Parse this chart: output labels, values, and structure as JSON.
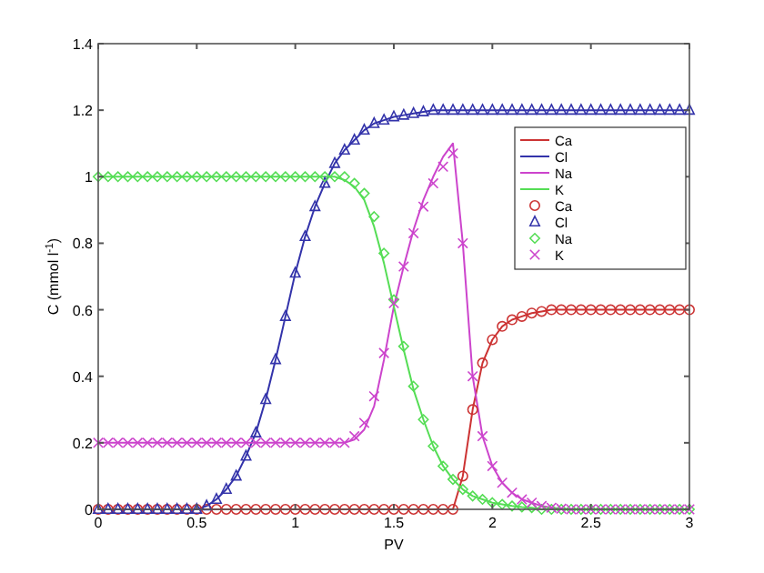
{
  "chart_data": {
    "type": "line",
    "xlabel": "PV",
    "ylabel": "C (mmol l$^{-1}$)",
    "x": [
      0,
      0.05,
      0.1,
      0.15,
      0.2,
      0.25,
      0.3,
      0.35,
      0.4,
      0.45,
      0.5,
      0.55,
      0.6,
      0.65,
      0.7,
      0.75,
      0.8,
      0.85,
      0.9,
      0.95,
      1,
      1.05,
      1.1,
      1.15,
      1.2,
      1.25,
      1.3,
      1.35,
      1.4,
      1.45,
      1.5,
      1.55,
      1.6,
      1.65,
      1.7,
      1.75,
      1.8,
      1.85,
      1.9,
      1.95,
      2,
      2.05,
      2.1,
      2.15,
      2.2,
      2.25,
      2.3,
      2.35,
      2.4,
      2.45,
      2.5,
      2.55,
      2.6,
      2.65,
      2.7,
      2.75,
      2.8,
      2.85,
      2.9,
      2.95,
      3
    ],
    "series": [
      {
        "name": "Ca",
        "marker": "none",
        "color": "#cc3333",
        "values": [
          0,
          0,
          0,
          0,
          0,
          0,
          0,
          0,
          0,
          0,
          0,
          0,
          0,
          0,
          0,
          0,
          0,
          0,
          0,
          0,
          0,
          0,
          0,
          0,
          0,
          0,
          0,
          0,
          0,
          0,
          0,
          0,
          0,
          0,
          0,
          0,
          0,
          0.1,
          0.3,
          0.44,
          0.51,
          0.55,
          0.57,
          0.58,
          0.59,
          0.595,
          0.6,
          0.6,
          0.6,
          0.6,
          0.6,
          0.6,
          0.6,
          0.6,
          0.6,
          0.6,
          0.6,
          0.6,
          0.6,
          0.6,
          0.6
        ]
      },
      {
        "name": "Cl",
        "marker": "none",
        "color": "#3333aa",
        "values": [
          0,
          0,
          0,
          0,
          0,
          0,
          0,
          0,
          0,
          0,
          0,
          0.01,
          0.03,
          0.06,
          0.1,
          0.16,
          0.23,
          0.33,
          0.45,
          0.58,
          0.71,
          0.82,
          0.91,
          0.98,
          1.04,
          1.08,
          1.11,
          1.14,
          1.16,
          1.17,
          1.18,
          1.185,
          1.19,
          1.195,
          1.2,
          1.2,
          1.2,
          1.2,
          1.2,
          1.2,
          1.2,
          1.2,
          1.2,
          1.2,
          1.2,
          1.2,
          1.2,
          1.2,
          1.2,
          1.2,
          1.2,
          1.2,
          1.2,
          1.2,
          1.2,
          1.2,
          1.2,
          1.2,
          1.2,
          1.2,
          1.2
        ]
      },
      {
        "name": "Na",
        "marker": "none",
        "color": "#cc44cc",
        "values": [
          0.2,
          0.2,
          0.2,
          0.2,
          0.2,
          0.2,
          0.2,
          0.2,
          0.2,
          0.2,
          0.2,
          0.2,
          0.2,
          0.2,
          0.2,
          0.2,
          0.2,
          0.2,
          0.2,
          0.2,
          0.2,
          0.2,
          0.2,
          0.2,
          0.2,
          0.2,
          0.21,
          0.24,
          0.31,
          0.45,
          0.61,
          0.73,
          0.84,
          0.93,
          1.0,
          1.06,
          1.1,
          0.8,
          0.4,
          0.22,
          0.13,
          0.08,
          0.05,
          0.03,
          0.02,
          0.01,
          0.005,
          0.002,
          0,
          0,
          0,
          0,
          0,
          0,
          0,
          0,
          0,
          0,
          0,
          0,
          0
        ]
      },
      {
        "name": "K",
        "marker": "none",
        "color": "#55dd55",
        "values": [
          1,
          1,
          1,
          1,
          1,
          1,
          1,
          1,
          1,
          1,
          1,
          1,
          1,
          1,
          1,
          1,
          1,
          1,
          1,
          1,
          1,
          1,
          1,
          1,
          1,
          0.99,
          0.97,
          0.93,
          0.85,
          0.74,
          0.61,
          0.48,
          0.36,
          0.27,
          0.19,
          0.13,
          0.09,
          0.06,
          0.04,
          0.03,
          0.02,
          0.015,
          0.01,
          0.007,
          0.005,
          0,
          0,
          0,
          0,
          0,
          0,
          0,
          0,
          0,
          0,
          0,
          0,
          0,
          0,
          0,
          0
        ]
      },
      {
        "name": "Ca",
        "type": "scatter",
        "marker": "circle",
        "color": "#cc3333",
        "values": [
          0,
          0,
          0,
          0,
          0,
          0,
          0,
          0,
          0,
          0,
          0,
          0,
          0,
          0,
          0,
          0,
          0,
          0,
          0,
          0,
          0,
          0,
          0,
          0,
          0,
          0,
          0,
          0,
          0,
          0,
          0,
          0,
          0,
          0,
          0,
          0,
          0,
          0.1,
          0.3,
          0.44,
          0.51,
          0.55,
          0.57,
          0.58,
          0.59,
          0.595,
          0.6,
          0.6,
          0.6,
          0.6,
          0.6,
          0.6,
          0.6,
          0.6,
          0.6,
          0.6,
          0.6,
          0.6,
          0.6,
          0.6,
          0.6
        ]
      },
      {
        "name": "Cl",
        "type": "scatter",
        "marker": "triangle",
        "color": "#3333aa",
        "values": [
          0,
          0,
          0,
          0,
          0,
          0,
          0,
          0,
          0,
          0,
          0,
          0.01,
          0.03,
          0.06,
          0.1,
          0.16,
          0.23,
          0.33,
          0.45,
          0.58,
          0.71,
          0.82,
          0.91,
          0.98,
          1.04,
          1.08,
          1.11,
          1.14,
          1.16,
          1.17,
          1.18,
          1.185,
          1.19,
          1.195,
          1.2,
          1.2,
          1.2,
          1.2,
          1.2,
          1.2,
          1.2,
          1.2,
          1.2,
          1.2,
          1.2,
          1.2,
          1.2,
          1.2,
          1.2,
          1.2,
          1.2,
          1.2,
          1.2,
          1.2,
          1.2,
          1.2,
          1.2,
          1.2,
          1.2,
          1.2,
          1.2
        ]
      },
      {
        "name": "Na",
        "type": "scatter",
        "marker": "diamond",
        "color": "#55dd55",
        "values": [
          1,
          1,
          1,
          1,
          1,
          1,
          1,
          1,
          1,
          1,
          1,
          1,
          1,
          1,
          1,
          1,
          1,
          1,
          1,
          1,
          1,
          1,
          1,
          1,
          1,
          1,
          0.98,
          0.95,
          0.88,
          0.77,
          0.63,
          0.49,
          0.37,
          0.27,
          0.19,
          0.13,
          0.09,
          0.06,
          0.04,
          0.03,
          0.02,
          0.015,
          0.01,
          0.007,
          0.005,
          0,
          0,
          0,
          0,
          0,
          0,
          0,
          0,
          0,
          0,
          0,
          0,
          0,
          0,
          0,
          0
        ]
      },
      {
        "name": "K",
        "type": "scatter",
        "marker": "cross",
        "color": "#cc44cc",
        "values": [
          0.2,
          0.2,
          0.2,
          0.2,
          0.2,
          0.2,
          0.2,
          0.2,
          0.2,
          0.2,
          0.2,
          0.2,
          0.2,
          0.2,
          0.2,
          0.2,
          0.2,
          0.2,
          0.2,
          0.2,
          0.2,
          0.2,
          0.2,
          0.2,
          0.2,
          0.2,
          0.22,
          0.26,
          0.34,
          0.47,
          0.62,
          0.73,
          0.83,
          0.91,
          0.98,
          1.03,
          1.07,
          0.8,
          0.4,
          0.22,
          0.13,
          0.08,
          0.05,
          0.03,
          0.02,
          0.01,
          0.005,
          0.002,
          0,
          0,
          0,
          0,
          0,
          0,
          0,
          0,
          0,
          0,
          0,
          0,
          0
        ]
      }
    ],
    "xlim": [
      0,
      3
    ],
    "xticks": [
      0,
      0.5,
      1,
      1.5,
      2,
      2.5,
      3
    ],
    "ylim": [
      0,
      1.4
    ],
    "yticks": [
      0,
      0.2,
      0.4,
      0.6,
      0.8,
      1,
      1.2,
      1.4
    ],
    "grid": false,
    "legend": "top right"
  }
}
